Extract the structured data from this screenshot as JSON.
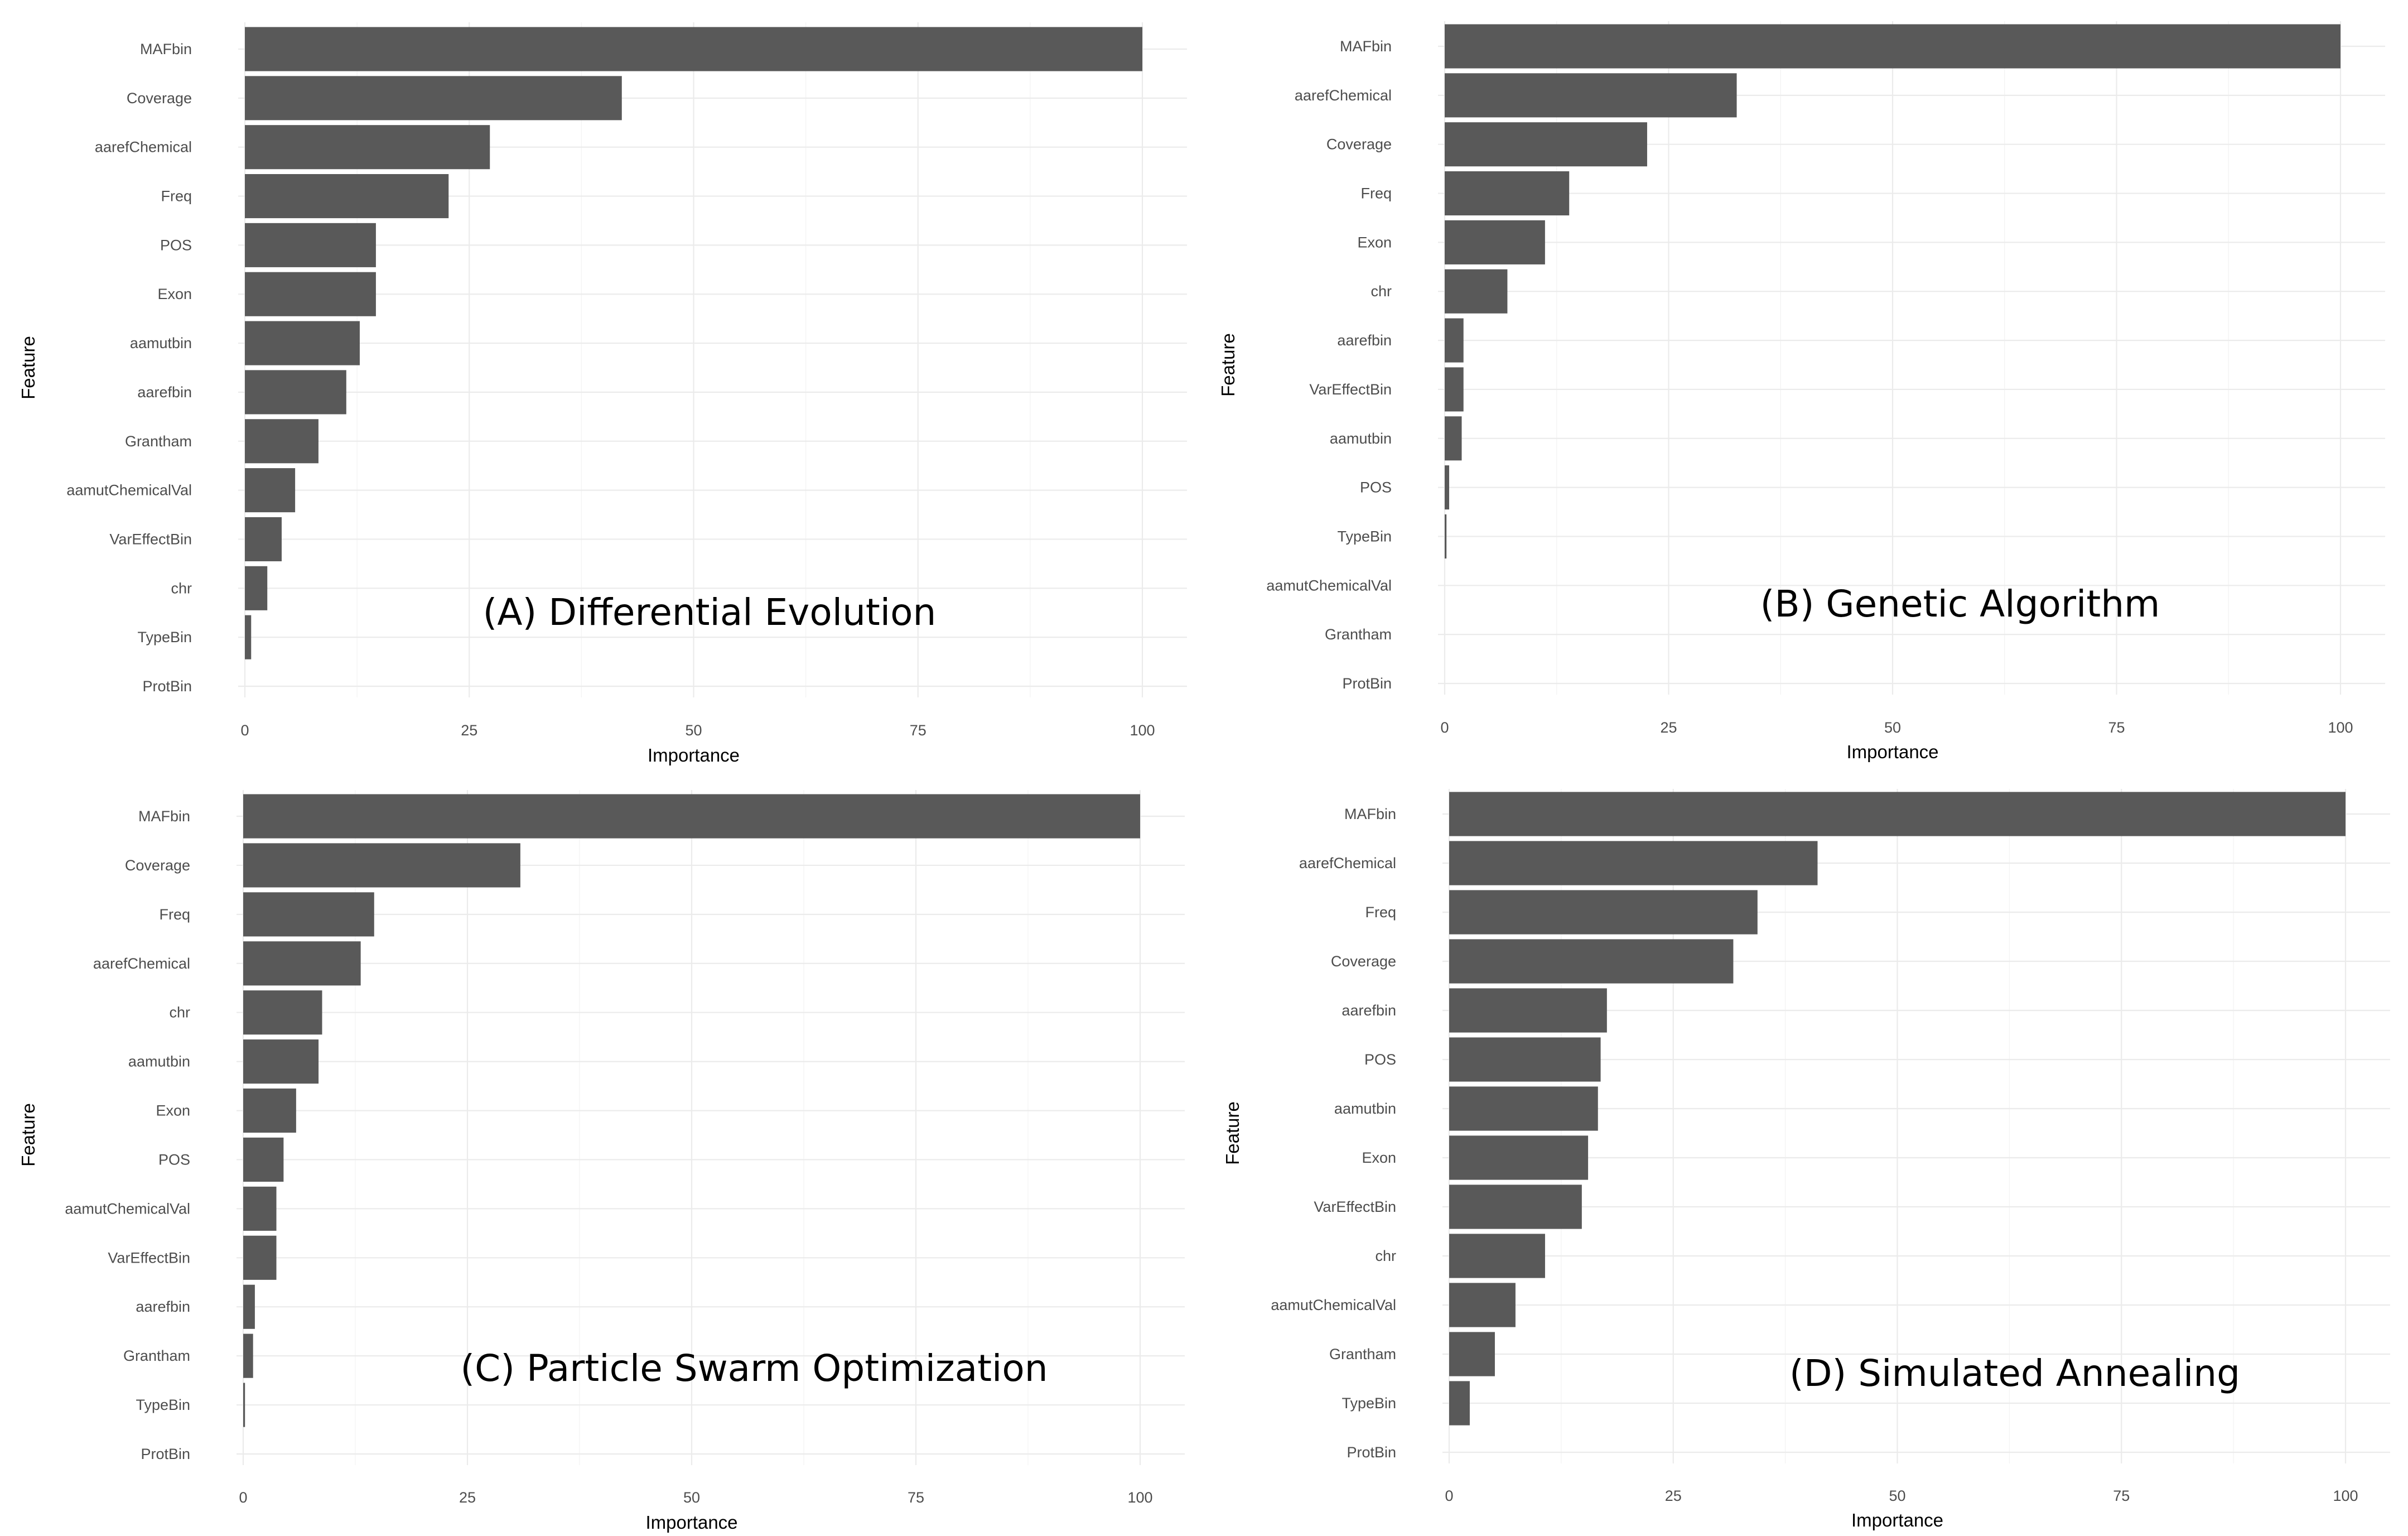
{
  "chart_data": [
    {
      "type": "bar",
      "orientation": "horizontal",
      "title": "(A) Differential Evolution",
      "xlabel": "Importance",
      "ylabel": "Feature",
      "xlim": [
        0,
        100
      ],
      "xticks": [
        "0",
        "25",
        "50",
        "75",
        "100"
      ],
      "categories": [
        "MAFbin",
        "Coverage",
        "aarefChemical",
        "Freq",
        "POS",
        "Exon",
        "aamutbin",
        "aarefbin",
        "Grantham",
        "aamutChemicalVal",
        "VarEffectBin",
        "chr",
        "TypeBin",
        "ProtBin"
      ],
      "values": [
        100,
        42,
        27.3,
        22.7,
        14.6,
        14.6,
        12.8,
        11.3,
        8.2,
        5.6,
        4.1,
        2.5,
        0.7,
        0
      ]
    },
    {
      "type": "bar",
      "orientation": "horizontal",
      "title": "(B) Genetic Algorithm",
      "xlabel": "Importance",
      "ylabel": "Feature",
      "xlim": [
        0,
        100
      ],
      "xticks": [
        "0",
        "25",
        "50",
        "75",
        "100"
      ],
      "categories": [
        "MAFbin",
        "aarefChemical",
        "Coverage",
        "Freq",
        "Exon",
        "chr",
        "aarefbin",
        "VarEffectBin",
        "aamutbin",
        "POS",
        "TypeBin",
        "aamutChemicalVal",
        "Grantham",
        "ProtBin"
      ],
      "values": [
        100,
        32.6,
        22.6,
        13.9,
        11.2,
        7,
        2.1,
        2.1,
        1.9,
        0.5,
        0.2,
        0,
        0,
        0
      ]
    },
    {
      "type": "bar",
      "orientation": "horizontal",
      "title": "(C) Particle Swarm Optimization",
      "xlabel": "Importance",
      "ylabel": "Feature",
      "xlim": [
        0,
        100
      ],
      "xticks": [
        "0",
        "25",
        "50",
        "75",
        "100"
      ],
      "categories": [
        "MAFbin",
        "Coverage",
        "Freq",
        "aarefChemical",
        "chr",
        "aamutbin",
        "Exon",
        "POS",
        "aamutChemicalVal",
        "VarEffectBin",
        "aarefbin",
        "Grantham",
        "TypeBin",
        "ProtBin"
      ],
      "values": [
        100,
        30.9,
        14.6,
        13.1,
        8.8,
        8.4,
        5.9,
        4.5,
        3.7,
        3.7,
        1.3,
        1.1,
        0.2,
        0
      ]
    },
    {
      "type": "bar",
      "orientation": "horizontal",
      "title": "(D) Simulated Annealing",
      "xlabel": "Importance",
      "ylabel": "Feature",
      "xlim": [
        0,
        100
      ],
      "xticks": [
        "0",
        "25",
        "50",
        "75",
        "100"
      ],
      "categories": [
        "MAFbin",
        "aarefChemical",
        "Freq",
        "Coverage",
        "aarefbin",
        "POS",
        "aamutbin",
        "Exon",
        "VarEffectBin",
        "chr",
        "aamutChemicalVal",
        "Grantham",
        "TypeBin",
        "ProtBin"
      ],
      "values": [
        100,
        41.1,
        34.4,
        31.7,
        17.6,
        16.9,
        16.6,
        15.5,
        14.8,
        10.7,
        7.4,
        5.1,
        2.3,
        0
      ]
    }
  ]
}
